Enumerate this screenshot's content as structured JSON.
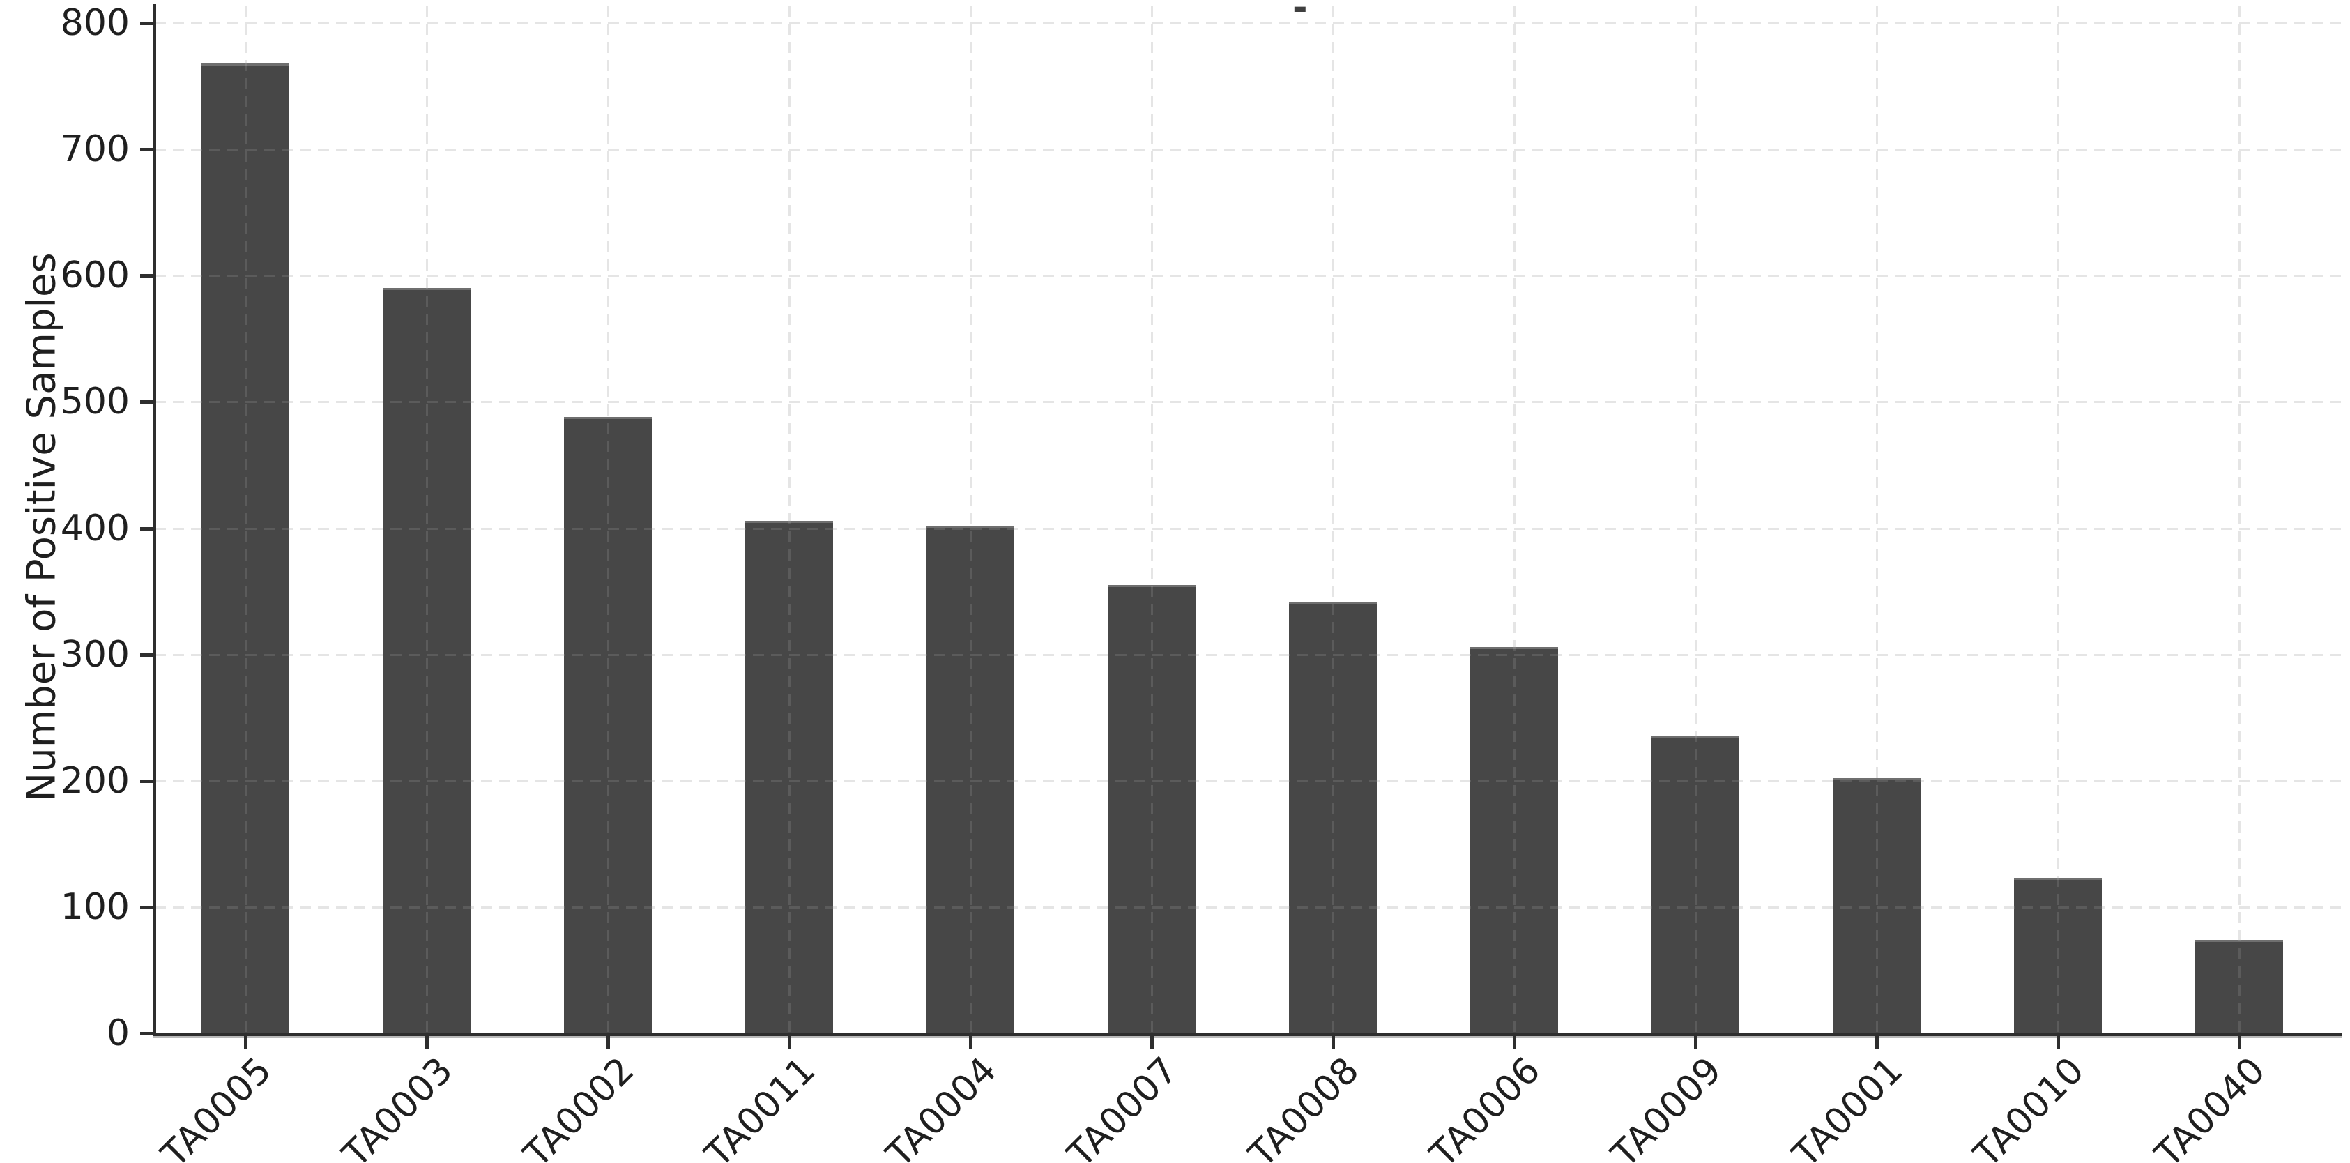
{
  "figure": {
    "background": "#ffffff",
    "top_mark": "-"
  },
  "chart_data": {
    "type": "bar",
    "title": "",
    "categories": [
      "TA0005",
      "TA0003",
      "TA0002",
      "TA0011",
      "TA0004",
      "TA0007",
      "TA0008",
      "TA0006",
      "TA0009",
      "TA0001",
      "TA0010",
      "TA0040"
    ],
    "values": [
      768,
      590,
      488,
      406,
      402,
      355,
      342,
      306,
      235,
      202,
      123,
      74
    ],
    "xlabel": "",
    "ylabel": "Number of Positive Samples",
    "ylim": [
      0,
      800
    ],
    "yticks": [
      0,
      100,
      200,
      300,
      400,
      500,
      600,
      700,
      800
    ],
    "x_tick_rotation_deg": 45,
    "grid": true,
    "grid_style": "dashed",
    "legend_position": "none",
    "colors": {
      "bar": "#474747",
      "bar_top_edge": "#6f6f6f",
      "grid": "#e2e2e2",
      "grid_on_bar_overlay": "rgba(255,255,255,0.11)",
      "axis": "#2e2e2e",
      "text": "#1f1f1f"
    }
  }
}
